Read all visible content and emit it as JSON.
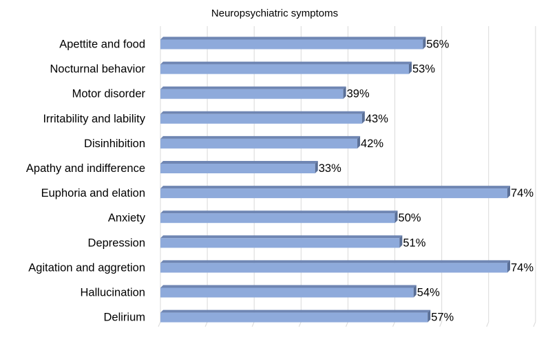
{
  "chart_data": {
    "type": "bar",
    "orientation": "horizontal",
    "title": "Neuropsychiatric symptoms",
    "xlabel": "",
    "ylabel": "",
    "categories": [
      "Apettite and food",
      "Nocturnal behavior",
      "Motor disorder",
      "Irritability and lability",
      "Disinhibition",
      "Apathy and indifference",
      "Euphoria and elation",
      "Anxiety",
      "Depression",
      "Agitation and aggretion",
      "Hallucination",
      "Delirium"
    ],
    "values": [
      56,
      53,
      39,
      43,
      42,
      33,
      74,
      50,
      51,
      74,
      54,
      57
    ],
    "data_labels": [
      "56%",
      "53%",
      "39%",
      "43%",
      "42%",
      "33%",
      "74%",
      "50%",
      "51%",
      "74%",
      "54%",
      "57%"
    ],
    "xlim": [
      0,
      80
    ],
    "grid": true,
    "legend": "none",
    "colors": {
      "bar_face": "#8eaadb",
      "bar_top": "#6f86b3",
      "bar_side": "#5a6f96"
    }
  }
}
